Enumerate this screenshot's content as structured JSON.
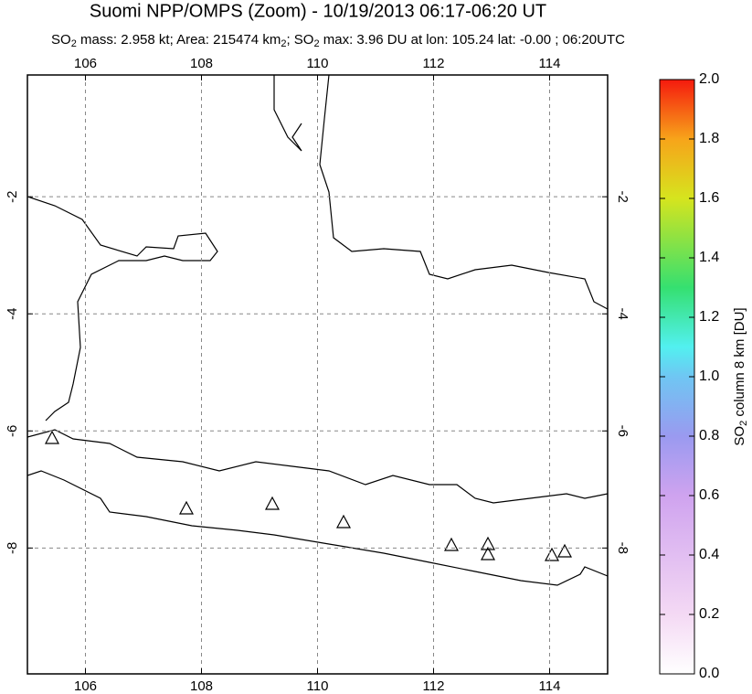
{
  "map": {
    "title": "Suomi NPP/OMPS (Zoom) - 10/19/2013 06:17-06:20 UT",
    "subtitle": [
      "SO",
      "2",
      " mass: 2.958 kt; Area: 215474 km",
      "2",
      "; SO",
      "2",
      " max: 3.96 DU at lon: 105.24 lat: -0.00 ; 06:20UTC"
    ],
    "xlim": [
      105,
      115
    ],
    "ylim": [
      -10.15,
      0.08
    ],
    "xticks": [
      106,
      108,
      110,
      112,
      114
    ],
    "yticks": [
      -2,
      -4,
      -6,
      -8
    ],
    "grid": true,
    "colorbar": {
      "label": [
        "SO",
        "2",
        " column 8 km [DU]"
      ],
      "lim": [
        0,
        2
      ],
      "ticks": [
        {
          "value": 0,
          "label": "0.0"
        },
        0.2,
        0.4,
        0.6,
        0.8,
        {
          "value": 1,
          "label": "1.0"
        },
        1.2,
        1.4,
        1.6,
        1.8,
        {
          "value": 2,
          "label": "2.0"
        }
      ]
    }
  }
}
